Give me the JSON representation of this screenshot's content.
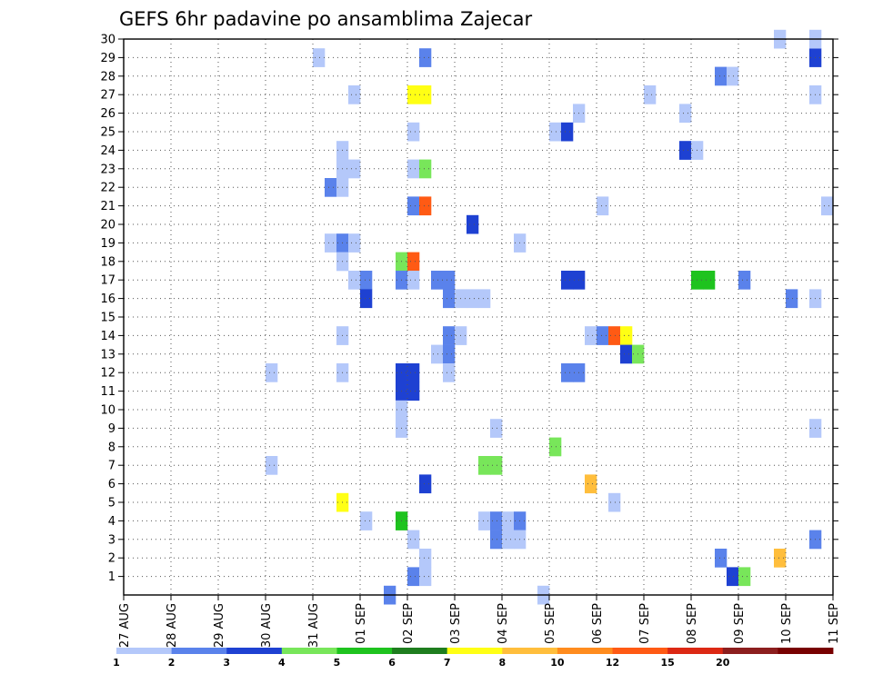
{
  "chart_data": {
    "type": "heatmap",
    "title": "GEFS 6hr padavine po ansamblima Zajecar",
    "xlabel": "",
    "ylabel": "",
    "x_tick_labels": [
      "27 AUG",
      "28 AUG",
      "29 AUG",
      "30 AUG",
      "31 AUG",
      "01 SEP",
      "02 SEP",
      "03 SEP",
      "04 SEP",
      "05 SEP",
      "06 SEP",
      "07 SEP",
      "08 SEP",
      "09 SEP",
      "10 SEP",
      "11 SEP"
    ],
    "y_tick_labels": [
      "1",
      "2",
      "3",
      "4",
      "5",
      "6",
      "7",
      "8",
      "9",
      "10",
      "11",
      "12",
      "13",
      "14",
      "15",
      "16",
      "17",
      "18",
      "19",
      "20",
      "21",
      "22",
      "23",
      "24",
      "25",
      "26",
      "27",
      "28",
      "29",
      "30"
    ],
    "xlim": [
      0,
      15
    ],
    "ylim": [
      0,
      30
    ],
    "grid": true,
    "colorbar": {
      "placement": "bottom",
      "tick_labels": [
        "1",
        "2",
        "3",
        "4",
        "5",
        "6",
        "7",
        "8",
        "10",
        "12",
        "15",
        "20"
      ],
      "colors": [
        "#b4c8fa",
        "#5a82eb",
        "#1e41d2",
        "#78e65a",
        "#1ec31e",
        "#1e7d1e",
        "#ffff14",
        "#ffbe3c",
        "#ff8c1e",
        "#ff5a14",
        "#dc2814",
        "#8c1e1e",
        "#780000"
      ]
    },
    "cell_width_days": 0.25,
    "cells": [
      {
        "t": 4.0,
        "m": 29,
        "c": 0
      },
      {
        "t": 6.25,
        "m": 29,
        "c": 1
      },
      {
        "t": 14.5,
        "m": 29,
        "c": 2
      },
      {
        "t": 13.75,
        "m": 30,
        "c": 0
      },
      {
        "t": 14.5,
        "m": 30,
        "c": 0
      },
      {
        "t": 12.5,
        "m": 28,
        "c": 1
      },
      {
        "t": 12.75,
        "m": 28,
        "c": 0
      },
      {
        "t": 4.75,
        "m": 27,
        "c": 0
      },
      {
        "t": 6.0,
        "m": 27,
        "c": 6
      },
      {
        "t": 6.25,
        "m": 27,
        "c": 6
      },
      {
        "t": 11.0,
        "m": 27,
        "c": 0
      },
      {
        "t": 14.5,
        "m": 27,
        "c": 0
      },
      {
        "t": 9.5,
        "m": 26,
        "c": 0
      },
      {
        "t": 11.75,
        "m": 26,
        "c": 0
      },
      {
        "t": 6.0,
        "m": 25,
        "c": 0
      },
      {
        "t": 9.0,
        "m": 25,
        "c": 0
      },
      {
        "t": 9.25,
        "m": 25,
        "c": 2
      },
      {
        "t": 4.5,
        "m": 24,
        "c": 0
      },
      {
        "t": 11.75,
        "m": 24,
        "c": 2
      },
      {
        "t": 12.0,
        "m": 24,
        "c": 0
      },
      {
        "t": 4.5,
        "m": 23,
        "c": 0
      },
      {
        "t": 4.75,
        "m": 23,
        "c": 0
      },
      {
        "t": 6.0,
        "m": 23,
        "c": 0
      },
      {
        "t": 6.25,
        "m": 23,
        "c": 3
      },
      {
        "t": 4.25,
        "m": 22,
        "c": 1
      },
      {
        "t": 4.5,
        "m": 22,
        "c": 0
      },
      {
        "t": 6.0,
        "m": 21,
        "c": 1
      },
      {
        "t": 6.25,
        "m": 21,
        "c": 9
      },
      {
        "t": 10.0,
        "m": 21,
        "c": 0
      },
      {
        "t": 14.75,
        "m": 21,
        "c": 0
      },
      {
        "t": 7.25,
        "m": 20,
        "c": 2
      },
      {
        "t": 4.25,
        "m": 19,
        "c": 0
      },
      {
        "t": 4.5,
        "m": 19,
        "c": 1
      },
      {
        "t": 4.75,
        "m": 19,
        "c": 0
      },
      {
        "t": 8.25,
        "m": 19,
        "c": 0
      },
      {
        "t": 4.5,
        "m": 18,
        "c": 0
      },
      {
        "t": 5.75,
        "m": 18,
        "c": 3
      },
      {
        "t": 6.0,
        "m": 18,
        "c": 9
      },
      {
        "t": 4.75,
        "m": 17,
        "c": 0
      },
      {
        "t": 5.0,
        "m": 17,
        "c": 1
      },
      {
        "t": 5.75,
        "m": 17,
        "c": 1
      },
      {
        "t": 6.0,
        "m": 17,
        "c": 0
      },
      {
        "t": 6.5,
        "m": 17,
        "c": 1
      },
      {
        "t": 6.75,
        "m": 17,
        "c": 1
      },
      {
        "t": 9.25,
        "m": 17,
        "c": 2
      },
      {
        "t": 9.5,
        "m": 17,
        "c": 2
      },
      {
        "t": 12.0,
        "m": 17,
        "c": 4
      },
      {
        "t": 12.25,
        "m": 17,
        "c": 4
      },
      {
        "t": 13.0,
        "m": 17,
        "c": 1
      },
      {
        "t": 5.0,
        "m": 16,
        "c": 2
      },
      {
        "t": 6.75,
        "m": 16,
        "c": 1
      },
      {
        "t": 7.0,
        "m": 16,
        "c": 0
      },
      {
        "t": 7.25,
        "m": 16,
        "c": 0
      },
      {
        "t": 7.5,
        "m": 16,
        "c": 0
      },
      {
        "t": 14.0,
        "m": 16,
        "c": 1
      },
      {
        "t": 14.5,
        "m": 16,
        "c": 0
      },
      {
        "t": 4.5,
        "m": 14,
        "c": 0
      },
      {
        "t": 6.75,
        "m": 14,
        "c": 1
      },
      {
        "t": 7.0,
        "m": 14,
        "c": 0
      },
      {
        "t": 9.75,
        "m": 14,
        "c": 0
      },
      {
        "t": 10.0,
        "m": 14,
        "c": 1
      },
      {
        "t": 10.25,
        "m": 14,
        "c": 9
      },
      {
        "t": 10.5,
        "m": 14,
        "c": 6
      },
      {
        "t": 6.5,
        "m": 13,
        "c": 0
      },
      {
        "t": 6.75,
        "m": 13,
        "c": 1
      },
      {
        "t": 10.5,
        "m": 13,
        "c": 2
      },
      {
        "t": 10.75,
        "m": 13,
        "c": 3
      },
      {
        "t": 3.0,
        "m": 12,
        "c": 0
      },
      {
        "t": 4.5,
        "m": 12,
        "c": 0
      },
      {
        "t": 5.75,
        "m": 12,
        "c": 2
      },
      {
        "t": 6.0,
        "m": 12,
        "c": 2
      },
      {
        "t": 6.75,
        "m": 12,
        "c": 0
      },
      {
        "t": 9.25,
        "m": 12,
        "c": 1
      },
      {
        "t": 9.5,
        "m": 12,
        "c": 1
      },
      {
        "t": 5.75,
        "m": 11,
        "c": 2
      },
      {
        "t": 6.0,
        "m": 11,
        "c": 2
      },
      {
        "t": 5.75,
        "m": 10,
        "c": 0
      },
      {
        "t": 5.75,
        "m": 9,
        "c": 0
      },
      {
        "t": 7.75,
        "m": 9,
        "c": 0
      },
      {
        "t": 14.5,
        "m": 9,
        "c": 0
      },
      {
        "t": 9.0,
        "m": 8,
        "c": 3
      },
      {
        "t": 3.0,
        "m": 7,
        "c": 0
      },
      {
        "t": 7.5,
        "m": 7,
        "c": 3
      },
      {
        "t": 7.75,
        "m": 7,
        "c": 3
      },
      {
        "t": 6.25,
        "m": 6,
        "c": 2
      },
      {
        "t": 9.75,
        "m": 6,
        "c": 7
      },
      {
        "t": 4.5,
        "m": 5,
        "c": 6
      },
      {
        "t": 10.25,
        "m": 5,
        "c": 0
      },
      {
        "t": 5.0,
        "m": 4,
        "c": 0
      },
      {
        "t": 5.75,
        "m": 4,
        "c": 4
      },
      {
        "t": 7.5,
        "m": 4,
        "c": 0
      },
      {
        "t": 7.75,
        "m": 4,
        "c": 1
      },
      {
        "t": 8.0,
        "m": 4,
        "c": 0
      },
      {
        "t": 8.25,
        "m": 4,
        "c": 1
      },
      {
        "t": 6.0,
        "m": 3,
        "c": 0
      },
      {
        "t": 7.75,
        "m": 3,
        "c": 1
      },
      {
        "t": 8.0,
        "m": 3,
        "c": 0
      },
      {
        "t": 8.25,
        "m": 3,
        "c": 0
      },
      {
        "t": 14.5,
        "m": 3,
        "c": 1
      },
      {
        "t": 6.25,
        "m": 2,
        "c": 0
      },
      {
        "t": 12.5,
        "m": 2,
        "c": 1
      },
      {
        "t": 13.75,
        "m": 2,
        "c": 7
      },
      {
        "t": 6.0,
        "m": 1,
        "c": 1
      },
      {
        "t": 6.25,
        "m": 1,
        "c": 0
      },
      {
        "t": 12.75,
        "m": 1,
        "c": 2
      },
      {
        "t": 13.0,
        "m": 1,
        "c": 3
      },
      {
        "t": 5.5,
        "m": 0,
        "c": 1
      },
      {
        "t": 8.75,
        "m": 0,
        "c": 0
      }
    ]
  }
}
